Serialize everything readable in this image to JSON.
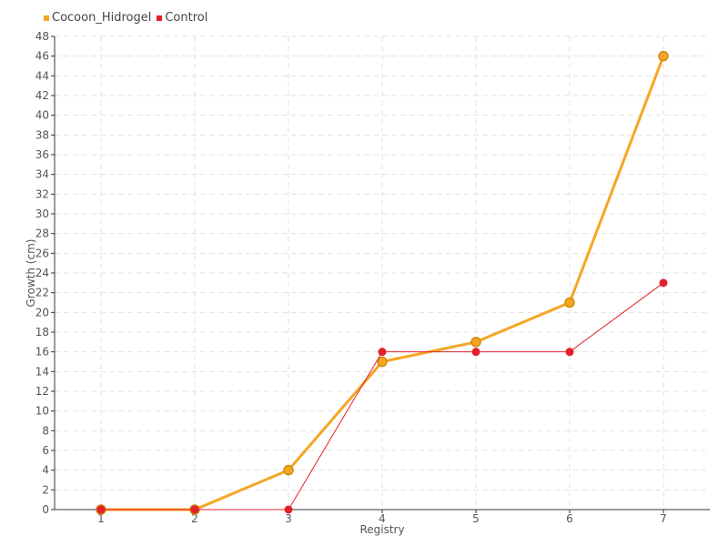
{
  "legend": [
    {
      "name": "Cocoon_Hidrogel",
      "color": "#f5a623"
    },
    {
      "name": "Control",
      "color": "#e3202a"
    }
  ],
  "chart_data": {
    "type": "line",
    "xlabel": "Registry",
    "ylabel": "Growth (cm)",
    "categories": [
      "1",
      "2",
      "3",
      "4",
      "5",
      "6",
      "7"
    ],
    "ylim": [
      0,
      48
    ],
    "ytick_step": 2,
    "grid": true,
    "legend_position": "top-left",
    "series": [
      {
        "name": "Cocoon_Hidrogel",
        "color": "#f5a623",
        "values": [
          0,
          0,
          4,
          15,
          17,
          21,
          46
        ]
      },
      {
        "name": "Control",
        "color": "#e3202a",
        "values": [
          0,
          0,
          0,
          16,
          16,
          16,
          23
        ]
      }
    ]
  }
}
